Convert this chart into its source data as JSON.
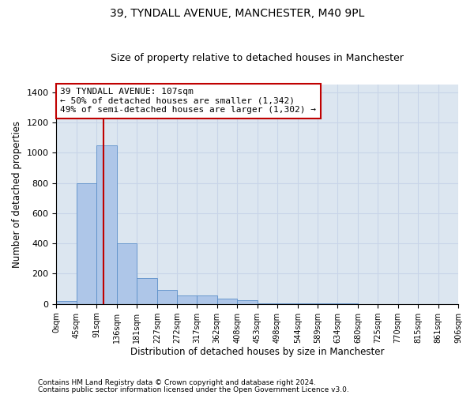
{
  "title1": "39, TYNDALL AVENUE, MANCHESTER, M40 9PL",
  "title2": "Size of property relative to detached houses in Manchester",
  "xlabel": "Distribution of detached houses by size in Manchester",
  "ylabel": "Number of detached properties",
  "footnote1": "Contains HM Land Registry data © Crown copyright and database right 2024.",
  "footnote2": "Contains public sector information licensed under the Open Government Licence v3.0.",
  "bin_edges": [
    0,
    45,
    91,
    136,
    181,
    227,
    272,
    317,
    362,
    408,
    453,
    498,
    544,
    589,
    634,
    680,
    725,
    770,
    815,
    861,
    906
  ],
  "bar_heights": [
    20,
    800,
    1050,
    400,
    170,
    90,
    55,
    55,
    35,
    25,
    5,
    5,
    5,
    2,
    2,
    1,
    1,
    1,
    1,
    1
  ],
  "bar_color": "#aec6e8",
  "bar_edge_color": "#5b8fc9",
  "vline_x": 107,
  "vline_color": "#c00000",
  "annotation_line1": "39 TYNDALL AVENUE: 107sqm",
  "annotation_line2": "← 50% of detached houses are smaller (1,342)",
  "annotation_line3": "49% of semi-detached houses are larger (1,302) →",
  "annotation_box_color": "#c00000",
  "ylim": [
    0,
    1450
  ],
  "yticks": [
    0,
    200,
    400,
    600,
    800,
    1000,
    1200,
    1400
  ],
  "grid_color": "#c8d4e8",
  "bg_color": "#dce6f0",
  "title1_fontsize": 10,
  "title2_fontsize": 9,
  "xlabel_fontsize": 8.5,
  "ylabel_fontsize": 8.5,
  "annotation_fontsize": 8,
  "tick_fontsize": 7
}
